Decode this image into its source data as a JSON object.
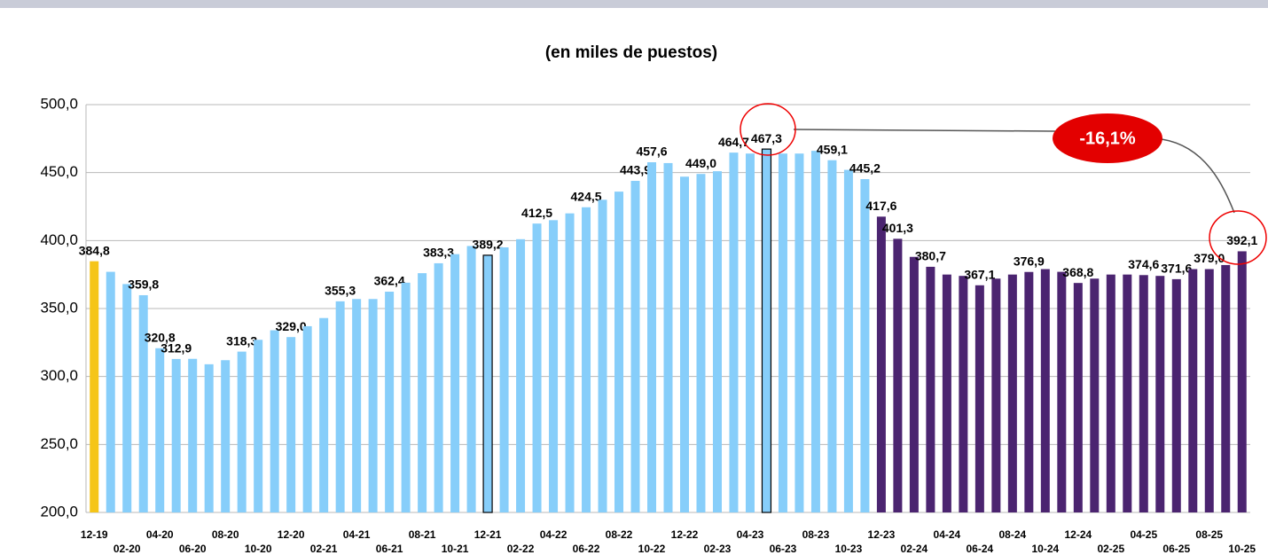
{
  "chart_data": {
    "type": "bar",
    "title": "(en miles de puestos)",
    "categories": [
      "12-19",
      null,
      "02-20",
      null,
      "04-20",
      null,
      "06-20",
      null,
      "08-20",
      null,
      "10-20",
      null,
      "12-20",
      null,
      "02-21",
      null,
      "04-21",
      null,
      "06-21",
      null,
      "08-21",
      null,
      "10-21",
      null,
      "12-21",
      null,
      "02-22",
      null,
      "04-22",
      null,
      "06-22",
      null,
      "08-22",
      null,
      "10-22",
      null,
      "12-22",
      null,
      "02-23",
      null,
      "04-23",
      null,
      "06-23",
      null,
      "08-23",
      null,
      "10-23",
      null,
      "12-23",
      null,
      "02-24",
      null,
      "04-24",
      null,
      "06-24",
      null,
      "08-24",
      null,
      "10-24",
      null,
      "12-24",
      null,
      "02-25",
      null,
      "04-25",
      null,
      "06-25",
      null,
      "08-25",
      null,
      "10-25"
    ],
    "values": [
      384.8,
      377,
      368,
      359.8,
      320.8,
      312.9,
      313,
      309,
      312,
      318.3,
      327,
      334,
      329.0,
      337,
      343,
      355.3,
      357,
      357,
      362.4,
      369,
      376,
      383.3,
      390,
      396,
      389.2,
      395,
      401,
      412.5,
      415,
      420,
      424.5,
      430,
      436,
      443.9,
      457.6,
      457,
      447,
      449.0,
      451,
      464.7,
      464,
      467.3,
      464,
      464,
      466,
      459.1,
      452,
      445.2,
      417.6,
      401.3,
      388,
      380.7,
      375,
      374,
      367.1,
      372,
      375,
      376.9,
      379,
      377,
      368.8,
      372,
      375,
      375,
      374.6,
      374,
      371.6,
      379,
      379.0,
      382,
      392.1
    ],
    "value_labels": [
      "384,8",
      null,
      null,
      "359,8",
      "320,8",
      "312,9",
      null,
      null,
      null,
      "318,3",
      null,
      null,
      "329,0",
      null,
      null,
      "355,3",
      null,
      null,
      "362,4",
      null,
      null,
      "383,3",
      null,
      null,
      "389,2",
      null,
      null,
      "412,5",
      null,
      null,
      "424,5",
      null,
      null,
      "443,9",
      "457,6",
      null,
      null,
      "449,0",
      null,
      "464,7",
      null,
      "467,3",
      null,
      null,
      null,
      "459,1",
      null,
      "445,2",
      "417,6",
      "401,3",
      null,
      "380,7",
      null,
      null,
      "367,1",
      null,
      null,
      "376,9",
      null,
      null,
      "368,8",
      null,
      null,
      null,
      "374,6",
      null,
      "371,6",
      null,
      "379,0",
      null,
      "392,1"
    ],
    "colors": [
      "#f5c518",
      "#87cefa",
      "#87cefa",
      "#87cefa",
      "#87cefa",
      "#87cefa",
      "#87cefa",
      "#87cefa",
      "#87cefa",
      "#87cefa",
      "#87cefa",
      "#87cefa",
      "#87cefa",
      "#87cefa",
      "#87cefa",
      "#87cefa",
      "#87cefa",
      "#87cefa",
      "#87cefa",
      "#87cefa",
      "#87cefa",
      "#87cefa",
      "#87cefa",
      "#87cefa",
      "#87cefa",
      "#87cefa",
      "#87cefa",
      "#87cefa",
      "#87cefa",
      "#87cefa",
      "#87cefa",
      "#87cefa",
      "#87cefa",
      "#87cefa",
      "#87cefa",
      "#87cefa",
      "#87cefa",
      "#87cefa",
      "#87cefa",
      "#87cefa",
      "#87cefa",
      "#87cefa",
      "#87cefa",
      "#87cefa",
      "#87cefa",
      "#87cefa",
      "#87cefa",
      "#87cefa",
      "#4b2470",
      "#4b2470",
      "#4b2470",
      "#4b2470",
      "#4b2470",
      "#4b2470",
      "#4b2470",
      "#4b2470",
      "#4b2470",
      "#4b2470",
      "#4b2470",
      "#4b2470",
      "#4b2470",
      "#4b2470",
      "#4b2470",
      "#4b2470",
      "#4b2470",
      "#4b2470",
      "#4b2470",
      "#4b2470",
      "#4b2470",
      "#4b2470",
      "#4b2470"
    ],
    "outlined": [
      24,
      41
    ],
    "ylim": [
      200,
      500
    ],
    "yticks": [
      {
        "value": 200,
        "label": "200,0"
      },
      {
        "value": 250,
        "label": "250,0"
      },
      {
        "value": 300,
        "label": "300,0"
      },
      {
        "value": 350,
        "label": "350,0"
      },
      {
        "value": 400,
        "label": "400,0"
      },
      {
        "value": 450,
        "label": "450,0"
      },
      {
        "value": 500,
        "label": "500,0"
      }
    ],
    "grid": true,
    "annotation": "-16,1%"
  }
}
